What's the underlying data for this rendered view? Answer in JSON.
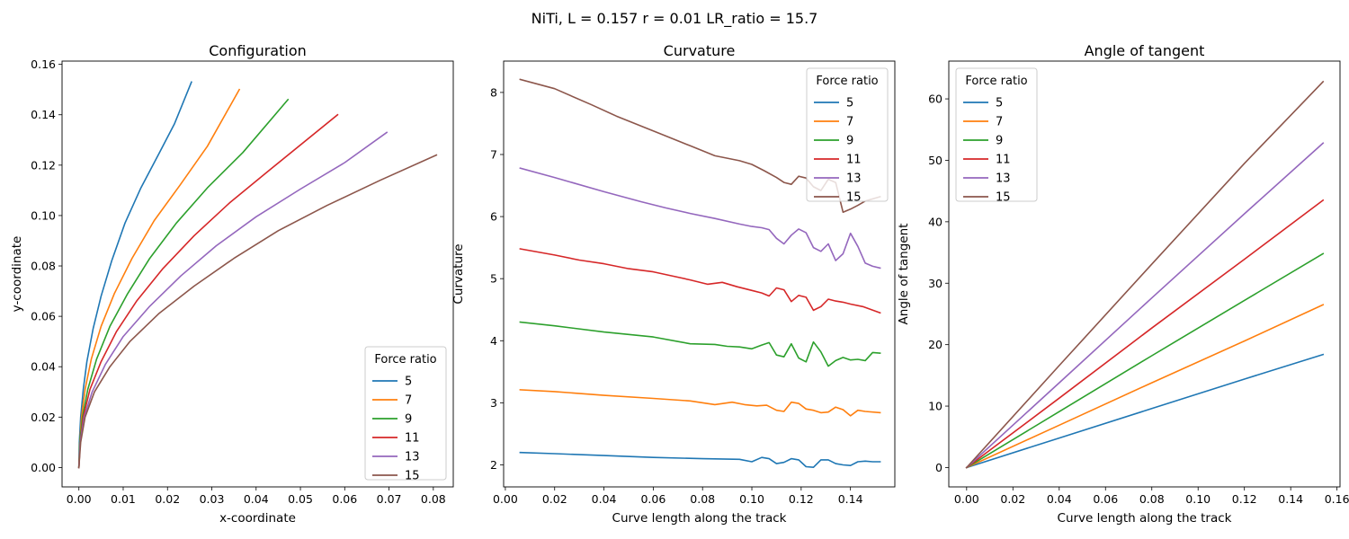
{
  "figure": {
    "suptitle": "NiTi, L = 0.157 r = 0.01 LR_ratio = 15.7"
  },
  "colors": [
    "#1f77b4",
    "#ff7f0e",
    "#2ca02c",
    "#d62728",
    "#9467bd",
    "#8c564b"
  ],
  "chart_data": [
    {
      "type": "line",
      "title": "Configuration",
      "xlabel": "x-coordinate",
      "ylabel": "y-coordinate",
      "xlim": [
        -0.0038,
        0.0845
      ],
      "ylim": [
        -0.0077,
        0.1613
      ],
      "xticks": [
        "0.00",
        "0.01",
        "0.02",
        "0.03",
        "0.04",
        "0.05",
        "0.06",
        "0.07",
        "0.08"
      ],
      "yticks": [
        "0.00",
        "0.02",
        "0.04",
        "0.06",
        "0.08",
        "0.10",
        "0.12",
        "0.14",
        "0.16"
      ],
      "legend": {
        "title": "Force ratio",
        "placement": "lower right"
      },
      "series": [
        {
          "name": "5",
          "x": [
            0.0,
            0.0001,
            0.0004,
            0.001,
            0.0018,
            0.0032,
            0.005,
            0.0074,
            0.0104,
            0.014,
            0.0182,
            0.0216,
            0.0254
          ],
          "y": [
            0.0,
            0.01,
            0.02,
            0.031,
            0.042,
            0.055,
            0.068,
            0.082,
            0.097,
            0.111,
            0.125,
            0.1365,
            0.153
          ]
        },
        {
          "name": "7",
          "x": [
            0.0,
            0.0002,
            0.0006,
            0.0014,
            0.0028,
            0.005,
            0.008,
            0.012,
            0.017,
            0.0228,
            0.029,
            0.0362
          ],
          "y": [
            0.0,
            0.01,
            0.02,
            0.031,
            0.043,
            0.056,
            0.069,
            0.083,
            0.098,
            0.112,
            0.1275,
            0.15
          ]
        },
        {
          "name": "9",
          "x": [
            0.0,
            0.0002,
            0.0008,
            0.002,
            0.004,
            0.007,
            0.011,
            0.016,
            0.022,
            0.029,
            0.037,
            0.0472
          ],
          "y": [
            0.0,
            0.01,
            0.02,
            0.031,
            0.043,
            0.056,
            0.069,
            0.083,
            0.097,
            0.111,
            0.125,
            0.146
          ]
        },
        {
          "name": "11",
          "x": [
            0.0,
            0.0003,
            0.001,
            0.0025,
            0.005,
            0.0085,
            0.013,
            0.019,
            0.026,
            0.034,
            0.043,
            0.0584
          ],
          "y": [
            0.0,
            0.01,
            0.02,
            0.031,
            0.042,
            0.054,
            0.066,
            0.079,
            0.092,
            0.105,
            0.118,
            0.14
          ]
        },
        {
          "name": "13",
          "x": [
            0.0,
            0.0003,
            0.0012,
            0.003,
            0.006,
            0.01,
            0.016,
            0.023,
            0.031,
            0.04,
            0.05,
            0.06,
            0.0695
          ],
          "y": [
            0.0,
            0.01,
            0.02,
            0.03,
            0.041,
            0.052,
            0.064,
            0.076,
            0.088,
            0.0995,
            0.1105,
            0.121,
            0.133
          ]
        },
        {
          "name": "15",
          "x": [
            0.0,
            0.0004,
            0.0014,
            0.0035,
            0.007,
            0.0115,
            0.018,
            0.026,
            0.035,
            0.045,
            0.056,
            0.068,
            0.0807
          ],
          "y": [
            0.0,
            0.01,
            0.02,
            0.03,
            0.04,
            0.05,
            0.061,
            0.072,
            0.083,
            0.094,
            0.104,
            0.114,
            0.124
          ]
        }
      ]
    },
    {
      "type": "line",
      "title": "Curvature",
      "xlabel": "Curve length along the track",
      "ylabel": "Curvature",
      "xlim": [
        -0.0007,
        0.158
      ],
      "ylim": [
        1.645,
        8.505
      ],
      "xticks": [
        "0.00",
        "0.02",
        "0.04",
        "0.06",
        "0.08",
        "0.10",
        "0.12",
        "0.14"
      ],
      "yticks": [
        "2",
        "3",
        "4",
        "5",
        "6",
        "7",
        "8"
      ],
      "legend": {
        "title": "Force ratio",
        "placement": "upper right"
      },
      "series": [
        {
          "name": "5",
          "x": [
            0.006,
            0.02,
            0.04,
            0.06,
            0.08,
            0.095,
            0.1,
            0.104,
            0.107,
            0.11,
            0.113,
            0.116,
            0.119,
            0.122,
            0.125,
            0.128,
            0.131,
            0.134,
            0.137,
            0.14,
            0.143,
            0.146,
            0.149,
            0.152
          ],
          "y": [
            2.2,
            2.18,
            2.15,
            2.12,
            2.1,
            2.09,
            2.05,
            2.12,
            2.1,
            2.02,
            2.04,
            2.1,
            2.08,
            1.97,
            1.96,
            2.08,
            2.08,
            2.02,
            2.0,
            1.99,
            2.05,
            2.06,
            2.05,
            2.05
          ]
        },
        {
          "name": "7",
          "x": [
            0.006,
            0.02,
            0.04,
            0.06,
            0.075,
            0.085,
            0.092,
            0.097,
            0.102,
            0.106,
            0.11,
            0.113,
            0.116,
            0.119,
            0.122,
            0.125,
            0.128,
            0.131,
            0.134,
            0.137,
            0.14,
            0.143,
            0.146,
            0.152
          ],
          "y": [
            3.21,
            3.18,
            3.12,
            3.07,
            3.03,
            2.97,
            3.01,
            2.97,
            2.95,
            2.96,
            2.88,
            2.86,
            3.01,
            2.99,
            2.9,
            2.88,
            2.84,
            2.85,
            2.93,
            2.89,
            2.79,
            2.88,
            2.86,
            2.84
          ]
        },
        {
          "name": "9",
          "x": [
            0.006,
            0.02,
            0.04,
            0.06,
            0.075,
            0.085,
            0.09,
            0.095,
            0.1,
            0.104,
            0.107,
            0.11,
            0.113,
            0.116,
            0.119,
            0.122,
            0.125,
            0.128,
            0.131,
            0.134,
            0.137,
            0.14,
            0.143,
            0.146,
            0.149,
            0.152
          ],
          "y": [
            4.3,
            4.24,
            4.14,
            4.06,
            3.95,
            3.94,
            3.91,
            3.9,
            3.87,
            3.93,
            3.97,
            3.77,
            3.74,
            3.95,
            3.72,
            3.66,
            3.98,
            3.82,
            3.59,
            3.68,
            3.73,
            3.69,
            3.7,
            3.68,
            3.81,
            3.8
          ]
        },
        {
          "name": "11",
          "x": [
            0.006,
            0.02,
            0.03,
            0.04,
            0.05,
            0.06,
            0.068,
            0.075,
            0.082,
            0.088,
            0.094,
            0.1,
            0.104,
            0.107,
            0.11,
            0.113,
            0.116,
            0.119,
            0.122,
            0.125,
            0.128,
            0.131,
            0.134,
            0.137,
            0.14,
            0.145,
            0.152
          ],
          "y": [
            5.48,
            5.38,
            5.3,
            5.24,
            5.16,
            5.11,
            5.04,
            4.98,
            4.91,
            4.94,
            4.87,
            4.81,
            4.77,
            4.72,
            4.85,
            4.82,
            4.63,
            4.73,
            4.7,
            4.49,
            4.55,
            4.67,
            4.64,
            4.62,
            4.59,
            4.55,
            4.45
          ]
        },
        {
          "name": "13",
          "x": [
            0.006,
            0.02,
            0.04,
            0.055,
            0.065,
            0.075,
            0.085,
            0.095,
            0.1,
            0.104,
            0.107,
            0.11,
            0.113,
            0.116,
            0.119,
            0.122,
            0.125,
            0.128,
            0.131,
            0.134,
            0.137,
            0.14,
            0.143,
            0.146,
            0.149,
            0.152
          ],
          "y": [
            6.78,
            6.63,
            6.4,
            6.24,
            6.14,
            6.05,
            5.97,
            5.88,
            5.84,
            5.82,
            5.79,
            5.65,
            5.56,
            5.7,
            5.8,
            5.74,
            5.5,
            5.44,
            5.56,
            5.29,
            5.4,
            5.73,
            5.52,
            5.25,
            5.2,
            5.17
          ]
        },
        {
          "name": "15",
          "x": [
            0.006,
            0.02,
            0.035,
            0.045,
            0.055,
            0.065,
            0.075,
            0.085,
            0.095,
            0.1,
            0.105,
            0.11,
            0.113,
            0.116,
            0.119,
            0.122,
            0.125,
            0.128,
            0.131,
            0.134,
            0.137,
            0.14,
            0.143,
            0.146,
            0.152
          ],
          "y": [
            8.21,
            8.06,
            7.8,
            7.62,
            7.46,
            7.3,
            7.14,
            6.98,
            6.9,
            6.84,
            6.74,
            6.63,
            6.55,
            6.52,
            6.65,
            6.62,
            6.48,
            6.42,
            6.6,
            6.55,
            6.07,
            6.12,
            6.18,
            6.25,
            6.32
          ]
        }
      ]
    },
    {
      "type": "line",
      "title": "Angle of tangent",
      "xlabel": "Curve length along the track",
      "ylabel": "Angle of tangent",
      "xlim": [
        -0.0077,
        0.1613
      ],
      "ylim": [
        -3.15,
        66.15
      ],
      "xticks": [
        "0.00",
        "0.02",
        "0.04",
        "0.06",
        "0.08",
        "0.10",
        "0.12",
        "0.14",
        "0.16"
      ],
      "yticks": [
        "0",
        "10",
        "20",
        "30",
        "40",
        "50",
        "60"
      ],
      "legend": {
        "title": "Force ratio",
        "placement": "upper left"
      },
      "series": [
        {
          "name": "5",
          "x": [
            0.0,
            0.04,
            0.08,
            0.12,
            0.154
          ],
          "y": [
            0.0,
            4.8,
            9.6,
            14.4,
            18.4
          ]
        },
        {
          "name": "7",
          "x": [
            0.0,
            0.04,
            0.08,
            0.12,
            0.154
          ],
          "y": [
            0.0,
            6.9,
            13.8,
            20.6,
            26.5
          ]
        },
        {
          "name": "9",
          "x": [
            0.0,
            0.04,
            0.08,
            0.12,
            0.154
          ],
          "y": [
            0.0,
            9.1,
            18.2,
            27.2,
            34.8
          ]
        },
        {
          "name": "11",
          "x": [
            0.0,
            0.04,
            0.08,
            0.12,
            0.154
          ],
          "y": [
            0.0,
            11.3,
            22.7,
            33.9,
            43.5
          ]
        },
        {
          "name": "13",
          "x": [
            0.0,
            0.04,
            0.08,
            0.12,
            0.154
          ],
          "y": [
            0.0,
            13.8,
            27.6,
            41.3,
            52.8
          ]
        },
        {
          "name": "15",
          "x": [
            0.0,
            0.04,
            0.08,
            0.12,
            0.154
          ],
          "y": [
            0.0,
            16.6,
            33.1,
            49.5,
            62.8
          ]
        }
      ]
    }
  ]
}
